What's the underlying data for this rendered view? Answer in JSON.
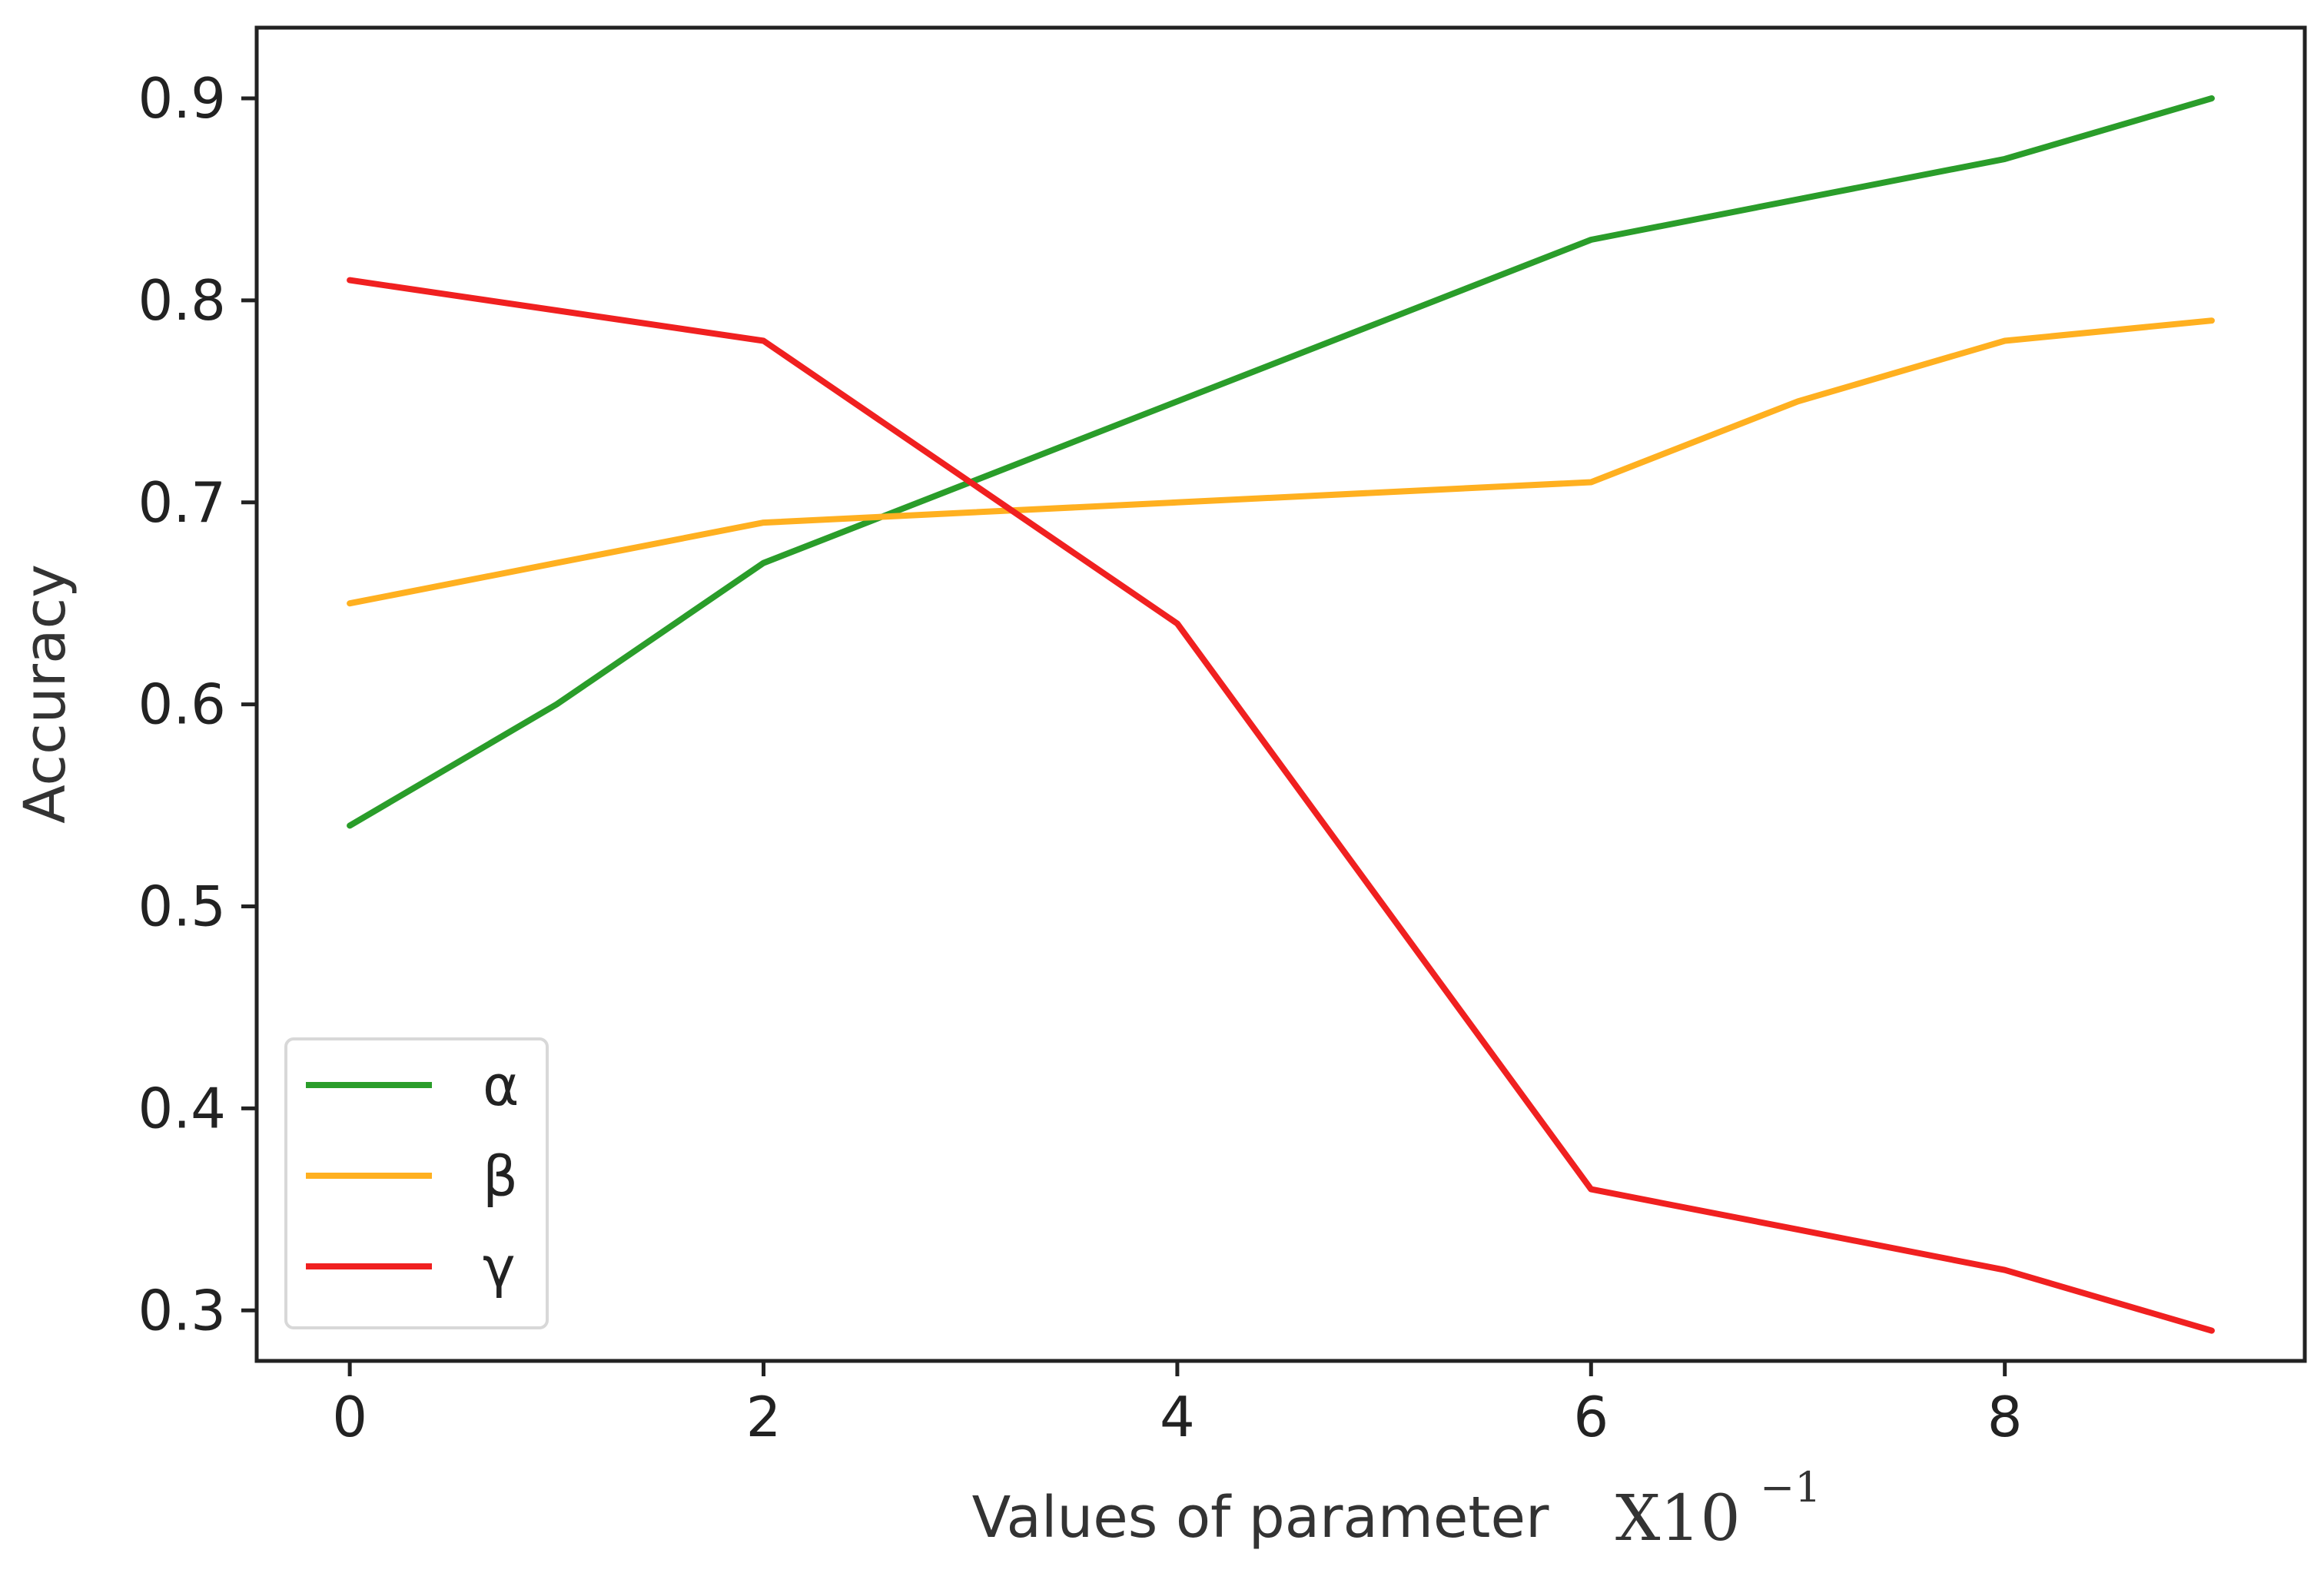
{
  "chart_data": {
    "type": "line",
    "x": [
      0,
      1,
      2,
      3,
      4,
      5,
      6,
      7,
      8,
      9
    ],
    "series": [
      {
        "name": "α",
        "color": "#2a9d2a",
        "values": [
          0.54,
          0.6,
          0.67,
          0.71,
          0.75,
          0.79,
          0.83,
          0.85,
          0.87,
          0.9
        ]
      },
      {
        "name": "β",
        "color": "#ffb020",
        "values": [
          0.65,
          0.67,
          0.69,
          0.695,
          0.7,
          0.705,
          0.71,
          0.75,
          0.78,
          0.79
        ]
      },
      {
        "name": "γ",
        "color": "#f02020",
        "values": [
          0.81,
          0.795,
          0.78,
          0.71,
          0.64,
          0.5,
          0.36,
          0.34,
          0.32,
          0.29
        ]
      }
    ],
    "title": "",
    "xlabel": "Values of parameter",
    "xlabel_multiplier": "X10",
    "xlabel_exponent": "−1",
    "ylabel": "Accuracy",
    "xlim": [
      -0.45,
      9.45
    ],
    "ylim": [
      0.275,
      0.935
    ],
    "xticks": [
      0,
      2,
      4,
      6,
      8
    ],
    "xtick_labels": [
      "0",
      "2",
      "4",
      "6",
      "8"
    ],
    "yticks": [
      0.3,
      0.4,
      0.5,
      0.6,
      0.7,
      0.8,
      0.9
    ],
    "ytick_labels": [
      "0.3",
      "0.4",
      "0.5",
      "0.6",
      "0.7",
      "0.8",
      "0.9"
    ],
    "grid": false,
    "legend_position": "lower-left"
  }
}
